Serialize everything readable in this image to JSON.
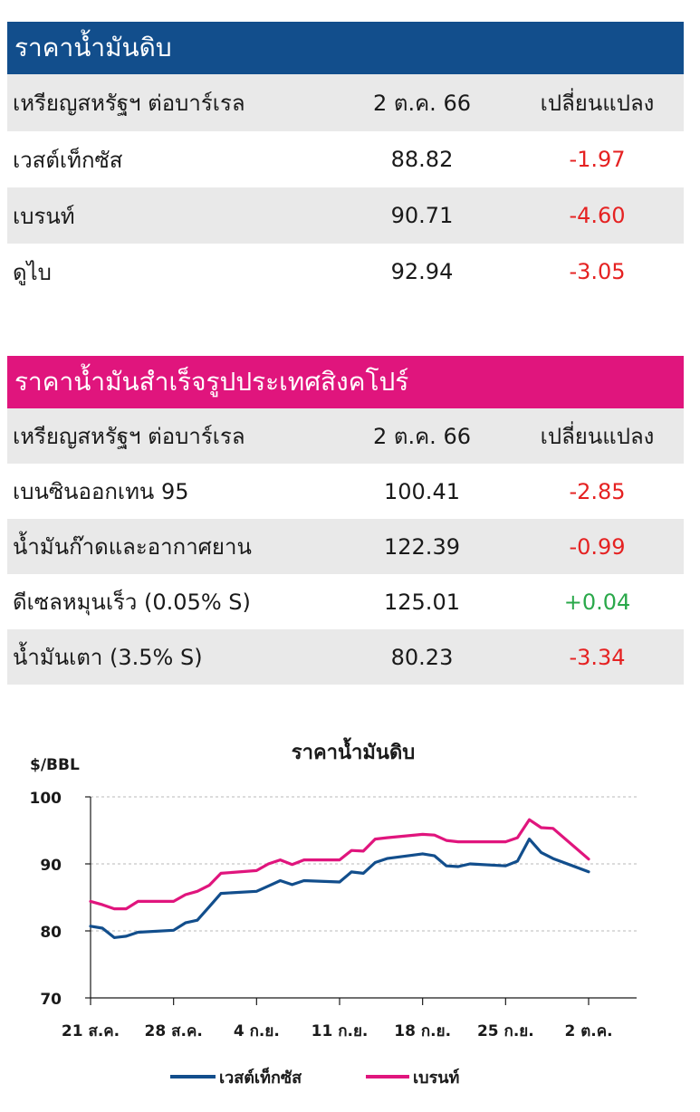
{
  "crude_table": {
    "title": "ราคาน้ำมันดิบ",
    "header": [
      "เหรียญสหรัฐฯ ต่อบาร์เรล",
      "2 ต.ค. 66",
      "เปลี่ยนแปลง"
    ],
    "rows": [
      {
        "name": "เวสต์เท็กซัส",
        "price": "88.82",
        "change": "-1.97"
      },
      {
        "name": "เบรนท์",
        "price": "90.71",
        "change": "-4.60"
      },
      {
        "name": "ดูไบ",
        "price": "92.94",
        "change": "-3.05"
      }
    ],
    "header_color": "#124e8c"
  },
  "product_table": {
    "title": "ราคาน้ำมันสำเร็จรูปประเทศสิงคโปร์",
    "header": [
      "เหรียญสหรัฐฯ ต่อบาร์เรล",
      "2 ต.ค. 66",
      "เปลี่ยนแปลง"
    ],
    "rows": [
      {
        "name": "เบนซินออกเทน 95",
        "price": "100.41",
        "change": "-2.85"
      },
      {
        "name": "น้ำมันก๊าดและอากาศยาน",
        "price": "122.39",
        "change": "-0.99"
      },
      {
        "name": "ดีเซลหมุนเร็ว (0.05% S)",
        "price": "125.01",
        "change": "+0.04"
      },
      {
        "name": "น้ำมันเตา (3.5% S)",
        "price": "80.23",
        "change": "-3.34"
      }
    ],
    "header_color": "#e0157d"
  },
  "chart_data": {
    "type": "line",
    "title": "ราคาน้ำมันดิบ",
    "ylabel": "$/BBL",
    "xlabel": "",
    "ylim": [
      70,
      100
    ],
    "yticks": [
      70,
      80,
      90,
      100
    ],
    "grid": true,
    "legend_position": "bottom",
    "x_tick_labels": [
      "21 ส.ค.",
      "28 ส.ค.",
      "4 ก.ย.",
      "11 ก.ย.",
      "18 ก.ย.",
      "25 ก.ย.",
      "2 ต.ค."
    ],
    "x_start": "2023-08-21",
    "series": [
      {
        "name": "เวสต์เท็กซัส",
        "color": "#124e8c",
        "x": [
          "2023-08-21",
          "2023-08-22",
          "2023-08-23",
          "2023-08-24",
          "2023-08-25",
          "2023-08-28",
          "2023-08-29",
          "2023-08-30",
          "2023-08-31",
          "2023-09-01",
          "2023-09-04",
          "2023-09-05",
          "2023-09-06",
          "2023-09-07",
          "2023-09-08",
          "2023-09-11",
          "2023-09-12",
          "2023-09-13",
          "2023-09-14",
          "2023-09-15",
          "2023-09-18",
          "2023-09-19",
          "2023-09-20",
          "2023-09-21",
          "2023-09-22",
          "2023-09-25",
          "2023-09-26",
          "2023-09-27",
          "2023-09-28",
          "2023-09-29",
          "2023-10-02"
        ],
        "values": [
          80.7,
          80.4,
          79.0,
          79.2,
          79.8,
          80.1,
          81.2,
          81.6,
          83.6,
          85.6,
          85.9,
          86.7,
          87.5,
          86.9,
          87.5,
          87.3,
          88.8,
          88.6,
          90.2,
          90.8,
          91.5,
          91.2,
          89.7,
          89.6,
          90.0,
          89.7,
          90.4,
          93.7,
          91.7,
          90.8,
          88.82
        ]
      },
      {
        "name": "เบรนท์",
        "color": "#e0157d",
        "x": [
          "2023-08-21",
          "2023-08-22",
          "2023-08-23",
          "2023-08-24",
          "2023-08-25",
          "2023-08-28",
          "2023-08-29",
          "2023-08-30",
          "2023-08-31",
          "2023-09-01",
          "2023-09-04",
          "2023-09-05",
          "2023-09-06",
          "2023-09-07",
          "2023-09-08",
          "2023-09-11",
          "2023-09-12",
          "2023-09-13",
          "2023-09-14",
          "2023-09-15",
          "2023-09-18",
          "2023-09-19",
          "2023-09-20",
          "2023-09-21",
          "2023-09-22",
          "2023-09-25",
          "2023-09-26",
          "2023-09-27",
          "2023-09-28",
          "2023-09-29",
          "2023-10-02"
        ],
        "values": [
          84.4,
          83.9,
          83.3,
          83.3,
          84.4,
          84.4,
          85.4,
          85.9,
          86.8,
          88.6,
          89.0,
          90.0,
          90.6,
          89.9,
          90.6,
          90.6,
          92.0,
          91.9,
          93.7,
          93.9,
          94.4,
          94.3,
          93.5,
          93.3,
          93.3,
          93.3,
          93.9,
          96.6,
          95.4,
          95.3,
          90.71
        ]
      }
    ]
  }
}
